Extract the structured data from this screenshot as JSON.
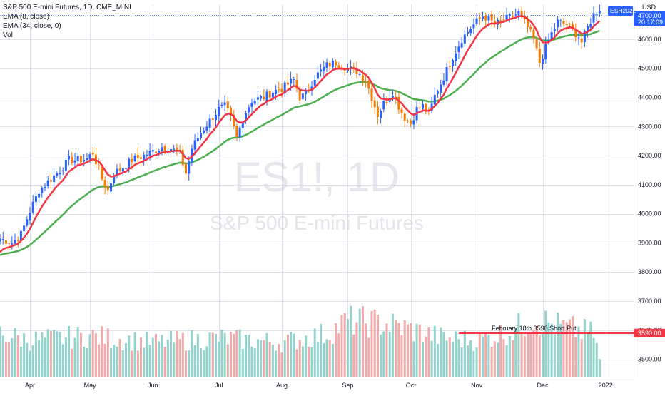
{
  "chart_data": {
    "type": "candlestick",
    "title": "S&P 500 E-mini Futures, 1D, CME_MINI",
    "watermark": {
      "line1": "ES1!, 1D",
      "line2": "S&P 500 E-mini Futures"
    },
    "indicators": [
      "EMA (8, close)",
      "EMA (34, close, 0)",
      "Vol"
    ],
    "currency": "USD",
    "last_price_tag": "ESH2022",
    "price_badge_value": "4700.00",
    "countdown": "20:17:09",
    "y_ticks": [
      "4600.00",
      "4500.00",
      "4400.00",
      "4300.00",
      "4200.00",
      "4100.00",
      "4000.00",
      "3900.00",
      "3800.00",
      "3700.00",
      "3600.00",
      "3500.00"
    ],
    "y_tick_values": [
      4600,
      4500,
      4400,
      4300,
      4200,
      4100,
      4000,
      3900,
      3800,
      3700,
      3600,
      3500
    ],
    "ylim": [
      3440,
      4720
    ],
    "x_tick_labels": [
      "Apr",
      "May",
      "Jun",
      "Jul",
      "Aug",
      "Sep",
      "Oct",
      "Nov",
      "Dec",
      "2022"
    ],
    "x_tick_days": [
      12,
      32,
      53,
      75,
      96,
      118,
      139,
      161,
      183,
      204
    ],
    "x_range": [
      2,
      210
    ],
    "annotation": {
      "text": "February 18th 3590 Short Put",
      "price": 3590,
      "price_label": "3590.00",
      "from_day": 155,
      "to_day": 207
    },
    "colors": {
      "up": "#2962ff",
      "down": "#f57c00",
      "ema_fast": "#f23645",
      "ema_slow": "#4caf50",
      "vol_up": "#80cbc4",
      "vol_down": "#ef9a9a",
      "grid": "#e0e3eb",
      "hline": "#f23645",
      "axis_text": "#131722"
    },
    "anchors": [
      [
        2,
        3915
      ],
      [
        6,
        3900
      ],
      [
        9,
        3930
      ],
      [
        12,
        4010
      ],
      [
        15,
        4080
      ],
      [
        19,
        4120
      ],
      [
        22,
        4150
      ],
      [
        25,
        4185
      ],
      [
        29,
        4185
      ],
      [
        31,
        4190
      ],
      [
        33,
        4210
      ],
      [
        36,
        4120
      ],
      [
        38,
        4080
      ],
      [
        40,
        4140
      ],
      [
        43,
        4160
      ],
      [
        46,
        4185
      ],
      [
        50,
        4200
      ],
      [
        53,
        4215
      ],
      [
        56,
        4230
      ],
      [
        59,
        4225
      ],
      [
        62,
        4205
      ],
      [
        64,
        4140
      ],
      [
        66,
        4225
      ],
      [
        69,
        4280
      ],
      [
        72,
        4320
      ],
      [
        75,
        4360
      ],
      [
        77,
        4370
      ],
      [
        79,
        4330
      ],
      [
        81,
        4260
      ],
      [
        83,
        4330
      ],
      [
        86,
        4390
      ],
      [
        90,
        4400
      ],
      [
        93,
        4420
      ],
      [
        96,
        4430
      ],
      [
        98,
        4445
      ],
      [
        100,
        4460
      ],
      [
        102,
        4400
      ],
      [
        104,
        4410
      ],
      [
        107,
        4470
      ],
      [
        111,
        4510
      ],
      [
        114,
        4520
      ],
      [
        116,
        4510
      ],
      [
        118,
        4500
      ],
      [
        121,
        4490
      ],
      [
        124,
        4460
      ],
      [
        126,
        4400
      ],
      [
        128,
        4340
      ],
      [
        130,
        4380
      ],
      [
        133,
        4420
      ],
      [
        135,
        4370
      ],
      [
        137,
        4330
      ],
      [
        139,
        4310
      ],
      [
        141,
        4360
      ],
      [
        143,
        4370
      ],
      [
        145,
        4340
      ],
      [
        147,
        4405
      ],
      [
        150,
        4470
      ],
      [
        153,
        4540
      ],
      [
        156,
        4600
      ],
      [
        159,
        4640
      ],
      [
        161,
        4660
      ],
      [
        163,
        4680
      ],
      [
        165,
        4670
      ],
      [
        167,
        4650
      ],
      [
        170,
        4665
      ],
      [
        173,
        4680
      ],
      [
        175,
        4690
      ],
      [
        178,
        4640
      ],
      [
        180,
        4600
      ],
      [
        182,
        4520
      ],
      [
        184,
        4570
      ],
      [
        186,
        4620
      ],
      [
        188,
        4660
      ],
      [
        191,
        4650
      ],
      [
        193,
        4630
      ],
      [
        195,
        4610
      ],
      [
        196,
        4590
      ],
      [
        198,
        4640
      ],
      [
        200,
        4685
      ],
      [
        202,
        4705
      ]
    ],
    "volume_by_month": [
      [
        2,
        1.0
      ],
      [
        12,
        0.85
      ],
      [
        32,
        0.95
      ],
      [
        53,
        0.8
      ],
      [
        75,
        0.9
      ],
      [
        96,
        0.8
      ],
      [
        111,
        1.0
      ],
      [
        118,
        1.3
      ],
      [
        130,
        1.25
      ],
      [
        139,
        1.1
      ],
      [
        150,
        0.9
      ],
      [
        161,
        0.85
      ],
      [
        172,
        1.05
      ],
      [
        180,
        1.35
      ],
      [
        190,
        1.15
      ],
      [
        200,
        1.0
      ],
      [
        202,
        0.4
      ]
    ]
  }
}
